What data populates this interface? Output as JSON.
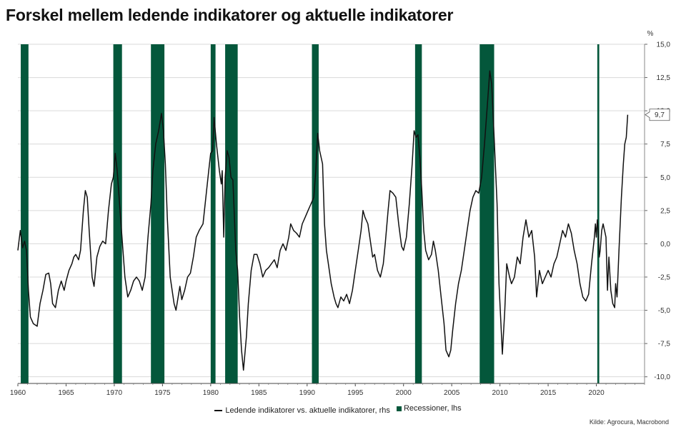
{
  "title": "Forskel mellem ledende indikatorer og aktuelle indikatorer",
  "unit_label": "%",
  "source": "Kilde: Agrocura, Macrobond",
  "colors": {
    "line": "#111111",
    "recession": "#04573b",
    "grid": "#d9d9d9",
    "callout_border": "#555555"
  },
  "legend": [
    {
      "label": "Ledende indikatorer vs. aktuelle indikatorer, rhs",
      "kind": "line"
    },
    {
      "label": "Recessioner, lhs",
      "kind": "box"
    }
  ],
  "chart_data": {
    "type": "line",
    "title": "Forskel mellem ledende indikatorer og aktuelle indikatorer",
    "xlim": [
      1960,
      2025
    ],
    "x_ticks": [
      1960,
      1965,
      1970,
      1975,
      1980,
      1985,
      1990,
      1995,
      2000,
      2005,
      2010,
      2015,
      2020
    ],
    "ylim": [
      -10.5,
      15
    ],
    "y_axis_side": "right",
    "y_ticks": [
      {
        "value": 15,
        "label": "15,0"
      },
      {
        "value": 12.5,
        "label": "12,5"
      },
      {
        "value": 10,
        "label": "10,0"
      },
      {
        "value": 7.5,
        "label": "7,5"
      },
      {
        "value": 5,
        "label": "5,0"
      },
      {
        "value": 2.5,
        "label": "2,5"
      },
      {
        "value": 0,
        "label": "0,0"
      },
      {
        "value": -2.5,
        "label": "-2,5"
      },
      {
        "value": -5,
        "label": "-5,0"
      },
      {
        "value": -7.5,
        "label": "-7,5"
      },
      {
        "value": -10,
        "label": "-10,0"
      }
    ],
    "grid": true,
    "legend_position": "bottom",
    "last_value_label": "9,7",
    "recessions": [
      [
        1960.3,
        1961.1
      ],
      [
        1969.9,
        1970.8
      ],
      [
        1973.8,
        1975.2
      ],
      [
        1980.0,
        1980.5
      ],
      [
        1981.5,
        1982.8
      ],
      [
        1990.5,
        1991.2
      ],
      [
        2001.2,
        2001.9
      ],
      [
        2007.9,
        2009.4
      ],
      [
        2020.1,
        2020.3
      ]
    ],
    "series": [
      {
        "name": "Ledende indikatorer vs. aktuelle indikatorer, rhs",
        "points": [
          [
            1960.0,
            -0.5
          ],
          [
            1960.25,
            1.0
          ],
          [
            1960.5,
            -0.3
          ],
          [
            1960.7,
            0.2
          ],
          [
            1960.9,
            -0.5
          ],
          [
            1961.1,
            -3.5
          ],
          [
            1961.3,
            -5.5
          ],
          [
            1961.6,
            -6.0
          ],
          [
            1962.0,
            -6.2
          ],
          [
            1962.3,
            -4.5
          ],
          [
            1962.6,
            -3.5
          ],
          [
            1962.9,
            -2.3
          ],
          [
            1963.2,
            -2.2
          ],
          [
            1963.4,
            -3.0
          ],
          [
            1963.6,
            -4.5
          ],
          [
            1963.9,
            -4.8
          ],
          [
            1964.2,
            -3.5
          ],
          [
            1964.5,
            -2.8
          ],
          [
            1964.8,
            -3.5
          ],
          [
            1965.0,
            -2.8
          ],
          [
            1965.3,
            -2.0
          ],
          [
            1965.6,
            -1.5
          ],
          [
            1965.8,
            -1.0
          ],
          [
            1966.0,
            -0.8
          ],
          [
            1966.3,
            -1.2
          ],
          [
            1966.5,
            -0.5
          ],
          [
            1966.8,
            2.5
          ],
          [
            1967.0,
            4.0
          ],
          [
            1967.2,
            3.5
          ],
          [
            1967.4,
            1.0
          ],
          [
            1967.7,
            -2.5
          ],
          [
            1967.9,
            -3.2
          ],
          [
            1968.2,
            -1.0
          ],
          [
            1968.5,
            -0.2
          ],
          [
            1968.8,
            0.2
          ],
          [
            1969.1,
            0.0
          ],
          [
            1969.4,
            2.5
          ],
          [
            1969.7,
            4.5
          ],
          [
            1969.9,
            5.0
          ],
          [
            1970.1,
            6.8
          ],
          [
            1970.3,
            5.5
          ],
          [
            1970.6,
            2.5
          ],
          [
            1970.8,
            0.5
          ],
          [
            1971.1,
            -2.5
          ],
          [
            1971.4,
            -4.0
          ],
          [
            1971.7,
            -3.5
          ],
          [
            1972.0,
            -2.8
          ],
          [
            1972.3,
            -2.5
          ],
          [
            1972.6,
            -2.8
          ],
          [
            1972.9,
            -3.5
          ],
          [
            1973.2,
            -2.5
          ],
          [
            1973.5,
            0.5
          ],
          [
            1973.8,
            3.0
          ],
          [
            1974.0,
            5.5
          ],
          [
            1974.3,
            7.5
          ],
          [
            1974.6,
            8.5
          ],
          [
            1974.9,
            9.8
          ],
          [
            1975.1,
            8.5
          ],
          [
            1975.3,
            6.0
          ],
          [
            1975.5,
            2.0
          ],
          [
            1975.8,
            -2.5
          ],
          [
            1976.0,
            -3.5
          ],
          [
            1976.2,
            -4.5
          ],
          [
            1976.4,
            -5.0
          ],
          [
            1976.8,
            -3.2
          ],
          [
            1977.0,
            -4.2
          ],
          [
            1977.3,
            -3.5
          ],
          [
            1977.6,
            -2.5
          ],
          [
            1977.9,
            -2.2
          ],
          [
            1978.2,
            -1.0
          ],
          [
            1978.5,
            0.5
          ],
          [
            1978.8,
            1.0
          ],
          [
            1979.2,
            1.5
          ],
          [
            1979.5,
            3.5
          ],
          [
            1979.8,
            5.5
          ],
          [
            1980.0,
            6.8
          ],
          [
            1980.2,
            7.0
          ],
          [
            1980.35,
            9.5
          ],
          [
            1980.6,
            7.5
          ],
          [
            1980.9,
            5.5
          ],
          [
            1981.1,
            4.5
          ],
          [
            1981.2,
            5.5
          ],
          [
            1981.35,
            0.5
          ],
          [
            1981.5,
            5.0
          ],
          [
            1981.7,
            7.0
          ],
          [
            1981.9,
            6.5
          ],
          [
            1982.1,
            5.0
          ],
          [
            1982.3,
            4.8
          ],
          [
            1982.6,
            -0.5
          ],
          [
            1982.8,
            -2.0
          ],
          [
            1983.0,
            -5.5
          ],
          [
            1983.2,
            -8.0
          ],
          [
            1983.4,
            -9.5
          ],
          [
            1983.7,
            -7.0
          ],
          [
            1983.9,
            -4.5
          ],
          [
            1984.2,
            -2.0
          ],
          [
            1984.5,
            -0.8
          ],
          [
            1984.8,
            -0.8
          ],
          [
            1985.1,
            -1.5
          ],
          [
            1985.4,
            -2.5
          ],
          [
            1985.7,
            -2.0
          ],
          [
            1986.0,
            -1.8
          ],
          [
            1986.3,
            -1.5
          ],
          [
            1986.6,
            -1.2
          ],
          [
            1986.9,
            -1.8
          ],
          [
            1987.2,
            -0.5
          ],
          [
            1987.5,
            0.0
          ],
          [
            1987.8,
            -0.5
          ],
          [
            1988.1,
            0.5
          ],
          [
            1988.3,
            1.5
          ],
          [
            1988.6,
            1.0
          ],
          [
            1988.9,
            0.8
          ],
          [
            1989.2,
            0.5
          ],
          [
            1989.5,
            1.5
          ],
          [
            1989.8,
            2.0
          ],
          [
            1990.1,
            2.5
          ],
          [
            1990.4,
            3.0
          ],
          [
            1990.7,
            3.5
          ],
          [
            1990.9,
            5.5
          ],
          [
            1991.1,
            8.3
          ],
          [
            1991.3,
            7.0
          ],
          [
            1991.6,
            6.0
          ],
          [
            1991.8,
            1.5
          ],
          [
            1992.0,
            -0.5
          ],
          [
            1992.2,
            -1.5
          ],
          [
            1992.5,
            -3.0
          ],
          [
            1992.8,
            -4.0
          ],
          [
            1993.0,
            -4.5
          ],
          [
            1993.2,
            -4.8
          ],
          [
            1993.5,
            -4.0
          ],
          [
            1993.8,
            -4.3
          ],
          [
            1994.1,
            -3.8
          ],
          [
            1994.4,
            -4.5
          ],
          [
            1994.7,
            -3.5
          ],
          [
            1995.0,
            -2.0
          ],
          [
            1995.3,
            -0.5
          ],
          [
            1995.6,
            1.0
          ],
          [
            1995.8,
            2.5
          ],
          [
            1996.0,
            2.0
          ],
          [
            1996.3,
            1.5
          ],
          [
            1996.5,
            0.5
          ],
          [
            1996.8,
            -1.0
          ],
          [
            1997.0,
            -0.8
          ],
          [
            1997.3,
            -2.0
          ],
          [
            1997.6,
            -2.5
          ],
          [
            1997.9,
            -1.5
          ],
          [
            1998.1,
            0.0
          ],
          [
            1998.4,
            2.5
          ],
          [
            1998.6,
            4.0
          ],
          [
            1998.9,
            3.8
          ],
          [
            1999.2,
            3.5
          ],
          [
            1999.5,
            1.5
          ],
          [
            1999.8,
            -0.2
          ],
          [
            2000.0,
            -0.5
          ],
          [
            2000.3,
            0.5
          ],
          [
            2000.6,
            3.0
          ],
          [
            2000.9,
            6.0
          ],
          [
            2001.1,
            8.5
          ],
          [
            2001.3,
            8.0
          ],
          [
            2001.5,
            8.2
          ],
          [
            2001.7,
            6.5
          ],
          [
            2001.9,
            4.0
          ],
          [
            2002.1,
            1.0
          ],
          [
            2002.3,
            -0.5
          ],
          [
            2002.6,
            -1.2
          ],
          [
            2002.9,
            -0.8
          ],
          [
            2003.1,
            0.2
          ],
          [
            2003.3,
            -0.5
          ],
          [
            2003.6,
            -2.0
          ],
          [
            2003.9,
            -4.0
          ],
          [
            2004.2,
            -6.0
          ],
          [
            2004.4,
            -8.0
          ],
          [
            2004.7,
            -8.5
          ],
          [
            2004.9,
            -8.0
          ],
          [
            2005.1,
            -6.5
          ],
          [
            2005.4,
            -4.5
          ],
          [
            2005.7,
            -3.0
          ],
          [
            2006.0,
            -2.0
          ],
          [
            2006.3,
            -0.5
          ],
          [
            2006.6,
            1.0
          ],
          [
            2006.9,
            2.5
          ],
          [
            2007.2,
            3.5
          ],
          [
            2007.5,
            4.0
          ],
          [
            2007.8,
            3.8
          ],
          [
            2008.1,
            5.0
          ],
          [
            2008.4,
            7.5
          ],
          [
            2008.7,
            10.5
          ],
          [
            2008.95,
            13.0
          ],
          [
            2009.15,
            12.0
          ],
          [
            2009.4,
            8.0
          ],
          [
            2009.7,
            3.0
          ],
          [
            2009.9,
            -3.0
          ],
          [
            2010.1,
            -6.0
          ],
          [
            2010.25,
            -8.3
          ],
          [
            2010.5,
            -5.0
          ],
          [
            2010.7,
            -1.5
          ],
          [
            2011.0,
            -2.5
          ],
          [
            2011.2,
            -3.0
          ],
          [
            2011.5,
            -2.5
          ],
          [
            2011.8,
            -1.0
          ],
          [
            2012.1,
            -1.5
          ],
          [
            2012.4,
            0.5
          ],
          [
            2012.7,
            1.8
          ],
          [
            2013.0,
            0.5
          ],
          [
            2013.3,
            1.0
          ],
          [
            2013.6,
            -1.0
          ],
          [
            2013.8,
            -4.0
          ],
          [
            2014.1,
            -2.0
          ],
          [
            2014.4,
            -3.0
          ],
          [
            2014.7,
            -2.5
          ],
          [
            2015.0,
            -2.0
          ],
          [
            2015.3,
            -2.5
          ],
          [
            2015.6,
            -1.5
          ],
          [
            2015.9,
            -1.0
          ],
          [
            2016.2,
            0.0
          ],
          [
            2016.5,
            1.0
          ],
          [
            2016.8,
            0.5
          ],
          [
            2017.1,
            1.5
          ],
          [
            2017.4,
            0.8
          ],
          [
            2017.7,
            -0.5
          ],
          [
            2018.0,
            -1.5
          ],
          [
            2018.3,
            -3.0
          ],
          [
            2018.6,
            -4.0
          ],
          [
            2018.9,
            -4.3
          ],
          [
            2019.2,
            -3.8
          ],
          [
            2019.5,
            -1.5
          ],
          [
            2019.8,
            0.5
          ],
          [
            2019.9,
            1.5
          ],
          [
            2020.0,
            0.5
          ],
          [
            2020.1,
            1.8
          ],
          [
            2020.2,
            1.0
          ],
          [
            2020.3,
            -1.0
          ],
          [
            2020.4,
            -0.5
          ],
          [
            2020.55,
            1.0
          ],
          [
            2020.7,
            1.5
          ],
          [
            2020.85,
            1.0
          ],
          [
            2021.0,
            0.5
          ],
          [
            2021.15,
            -3.5
          ],
          [
            2021.3,
            -1.0
          ],
          [
            2021.5,
            -3.5
          ],
          [
            2021.7,
            -4.5
          ],
          [
            2021.9,
            -4.8
          ],
          [
            2022.0,
            -3.0
          ],
          [
            2022.15,
            -4.0
          ],
          [
            2022.35,
            -0.5
          ],
          [
            2022.6,
            3.5
          ],
          [
            2022.8,
            6.0
          ],
          [
            2022.95,
            7.5
          ],
          [
            2023.1,
            8.0
          ],
          [
            2023.25,
            9.7
          ]
        ]
      }
    ]
  }
}
